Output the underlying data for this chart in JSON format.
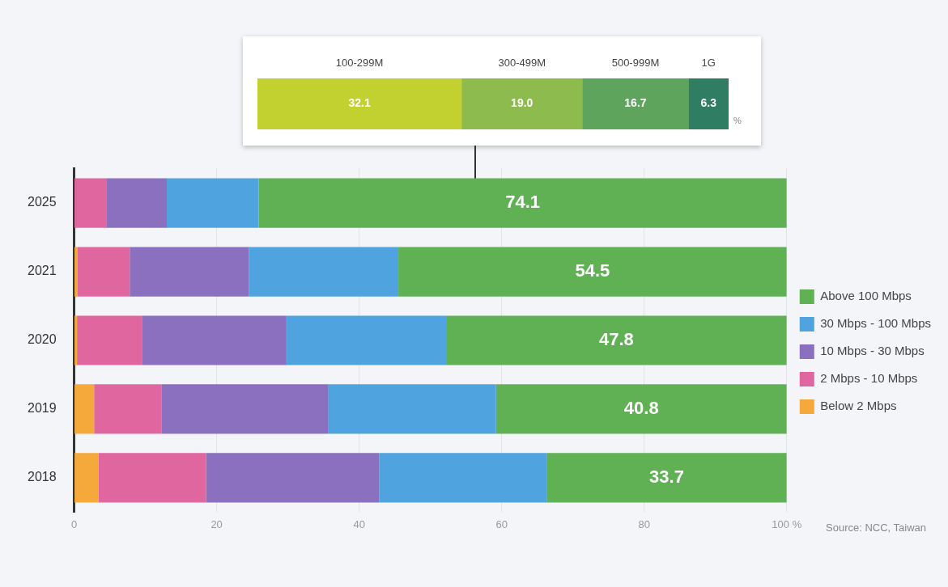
{
  "chart_data": [
    {
      "type": "bar",
      "orientation": "horizontal",
      "stacked": true,
      "categories": [
        null
      ],
      "series": [
        {
          "name": "100-299M",
          "color": "#c3d130",
          "values": [
            32.1
          ],
          "value_labels": [
            "32.1"
          ]
        },
        {
          "name": "300-499M",
          "color": "#8dbb4e",
          "values": [
            19.0
          ],
          "value_labels": [
            "19.0"
          ]
        },
        {
          "name": "500-999M",
          "color": "#5fa45c",
          "values": [
            16.7
          ],
          "value_labels": [
            "16.7"
          ]
        },
        {
          "name": "1G",
          "color": "#2f7d62",
          "values": [
            6.3
          ],
          "value_labels": [
            "6.3"
          ]
        }
      ],
      "legend": false,
      "grid": false,
      "annotations": [
        "%"
      ]
    },
    {
      "type": "bar",
      "orientation": "horizontal",
      "stacked": true,
      "categories": [
        "2025",
        "2021",
        "2020",
        "2019",
        "2018"
      ],
      "series": [
        {
          "name": "Below 2 Mbps",
          "color": "#f5a93a",
          "values": [
            0,
            0.5,
            0.4,
            2.8,
            3.4
          ]
        },
        {
          "name": "2 Mbps - 10 Mbps",
          "color": "#e0669f",
          "values": [
            4.5,
            7.3,
            9.1,
            9.5,
            15.1
          ]
        },
        {
          "name": "10 Mbps - 30 Mbps",
          "color": "#8a70bf",
          "values": [
            8.5,
            16.7,
            20.3,
            23.4,
            24.3
          ]
        },
        {
          "name": "30 Mbps - 100 Mbps",
          "color": "#4fa3df",
          "values": [
            12.9,
            21.0,
            22.4,
            23.5,
            23.5
          ]
        },
        {
          "name": "Above 100 Mbps",
          "color": "#5fb154",
          "values": [
            74.1,
            54.5,
            47.8,
            40.8,
            33.7
          ],
          "value_labels": [
            "74.1",
            "54.5",
            "47.8",
            "40.8",
            "33.7"
          ]
        }
      ],
      "xlim": [
        0,
        100
      ],
      "xticks": [
        0,
        20,
        40,
        60,
        80,
        {
          "value": 100,
          "label": "100 %"
        }
      ],
      "grid": "x",
      "legend": "right",
      "annotations": [
        "Source: NCC, Taiwan"
      ]
    }
  ]
}
